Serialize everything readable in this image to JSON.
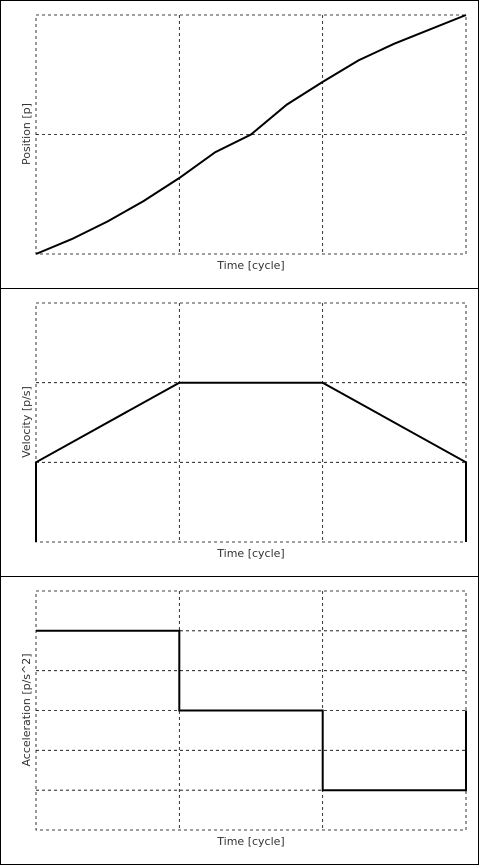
{
  "chart_data": [
    {
      "type": "line",
      "xlabel": "Time [cycle]",
      "ylabel": "Position [p]",
      "xlim": [
        0,
        3
      ],
      "ylim": [
        0,
        2
      ],
      "grid": true,
      "x_gridlines": [
        1,
        2
      ],
      "y_gridlines": [
        1
      ],
      "series": [
        {
          "x": [
            0,
            0.25,
            0.5,
            0.75,
            1,
            1.25,
            1.5,
            1.75,
            2,
            2.25,
            2.5,
            2.75,
            3
          ],
          "values": [
            0,
            0.125,
            0.273,
            0.443,
            0.636,
            0.852,
            1.0,
            1.25,
            1.44,
            1.62,
            1.76,
            1.88,
            2.0
          ]
        }
      ]
    },
    {
      "type": "line",
      "xlabel": "Time [cycle]",
      "ylabel": "Velocity [p/s]",
      "xlim": [
        0,
        3
      ],
      "ylim": [
        0,
        3
      ],
      "grid": true,
      "x_gridlines": [
        1,
        2
      ],
      "y_gridlines": [
        1,
        2
      ],
      "series": [
        {
          "x": [
            0,
            0,
            1,
            2,
            3,
            3
          ],
          "values": [
            0,
            1,
            2,
            2,
            1,
            0
          ]
        }
      ]
    },
    {
      "type": "line",
      "xlabel": "Time [cycle]",
      "ylabel": "Acceleration [p/s^2]",
      "xlim": [
        0,
        3
      ],
      "ylim": [
        -3,
        3
      ],
      "grid": true,
      "x_gridlines": [
        1,
        2
      ],
      "y_gridlines": [
        -2,
        -1,
        0,
        1,
        2
      ],
      "series": [
        {
          "x": [
            0,
            1,
            1,
            2,
            2,
            3,
            3
          ],
          "values": [
            2,
            2,
            0,
            0,
            -2,
            -2,
            0
          ]
        }
      ]
    }
  ]
}
